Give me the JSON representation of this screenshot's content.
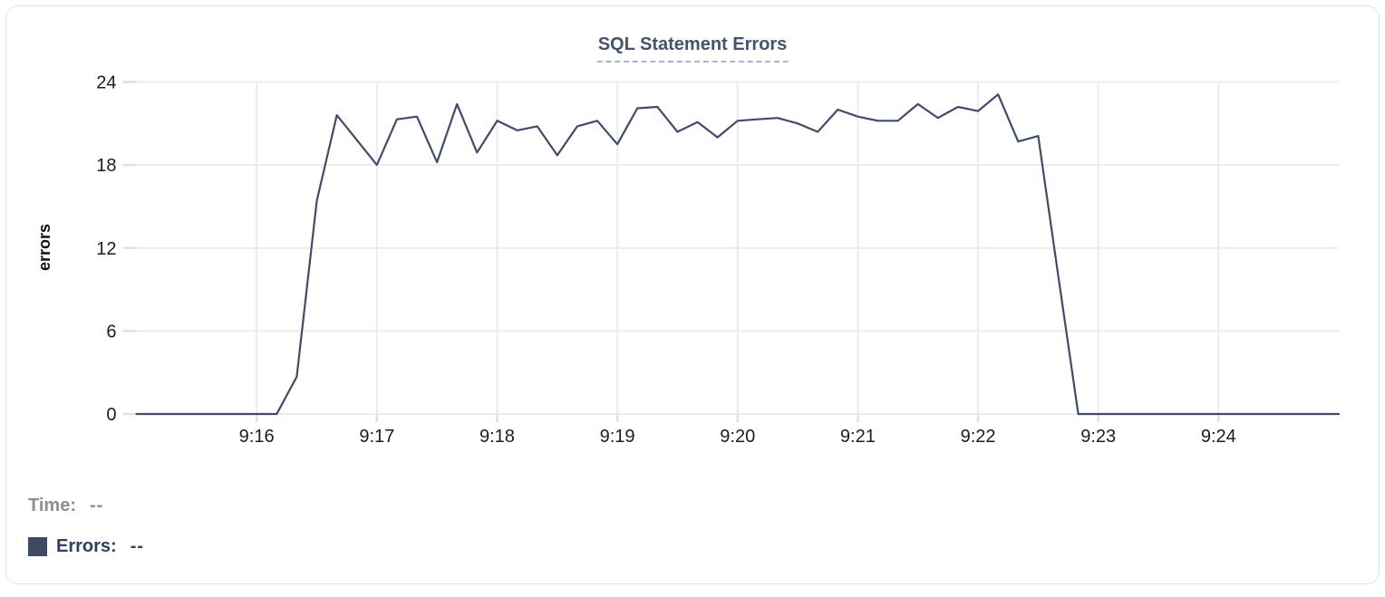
{
  "card": {
    "title": "SQL Statement Errors"
  },
  "tooltip": {
    "time_label": "Time:",
    "time_value": "--",
    "errors_label": "Errors:",
    "errors_value": "--"
  },
  "colors": {
    "line": "#3f4c6a",
    "legend_swatch": "#3e4a63",
    "title_text": "#44536e",
    "muted_text": "#8e8e93",
    "tick_label": "#1c1c1e",
    "gridline": "#ececec",
    "tick_stub": "#e0e0e3",
    "title_underline": "#a9b6c7",
    "card_border": "#e3e3e6"
  },
  "chart_data": {
    "type": "line",
    "title": "SQL Statement Errors",
    "xlabel": "",
    "ylabel": "errors",
    "ylim": [
      0,
      24
    ],
    "y_ticks": [
      24,
      18,
      12,
      6,
      0
    ],
    "x_ticks": [
      "9:16",
      "9:17",
      "9:18",
      "9:19",
      "9:20",
      "9:21",
      "9:22",
      "9:23",
      "9:24"
    ],
    "x_range": [
      "9:15:00",
      "9:25:00"
    ],
    "grid": true,
    "legend_position": "bottom-left",
    "series": [
      {
        "name": "Errors",
        "color": "#3f4c6a",
        "points": [
          [
            "9:15:00",
            0
          ],
          [
            "9:15:10",
            0
          ],
          [
            "9:15:20",
            0
          ],
          [
            "9:15:30",
            0
          ],
          [
            "9:15:40",
            0
          ],
          [
            "9:15:50",
            0
          ],
          [
            "9:16:00",
            0
          ],
          [
            "9:16:10",
            0
          ],
          [
            "9:16:20",
            2.7
          ],
          [
            "9:16:30",
            15.4
          ],
          [
            "9:16:40",
            21.6
          ],
          [
            "9:16:50",
            19.8
          ],
          [
            "9:17:00",
            18.0
          ],
          [
            "9:17:10",
            21.3
          ],
          [
            "9:17:20",
            21.5
          ],
          [
            "9:17:30",
            18.2
          ],
          [
            "9:17:40",
            22.4
          ],
          [
            "9:17:50",
            18.9
          ],
          [
            "9:18:00",
            21.2
          ],
          [
            "9:18:10",
            20.5
          ],
          [
            "9:18:20",
            20.8
          ],
          [
            "9:18:30",
            18.7
          ],
          [
            "9:18:40",
            20.8
          ],
          [
            "9:18:50",
            21.2
          ],
          [
            "9:19:00",
            19.5
          ],
          [
            "9:19:10",
            22.1
          ],
          [
            "9:19:20",
            22.2
          ],
          [
            "9:19:30",
            20.4
          ],
          [
            "9:19:40",
            21.1
          ],
          [
            "9:19:50",
            20.0
          ],
          [
            "9:20:00",
            21.2
          ],
          [
            "9:20:10",
            21.3
          ],
          [
            "9:20:20",
            21.4
          ],
          [
            "9:20:30",
            21.0
          ],
          [
            "9:20:40",
            20.4
          ],
          [
            "9:20:50",
            22.0
          ],
          [
            "9:21:00",
            21.5
          ],
          [
            "9:21:10",
            21.2
          ],
          [
            "9:21:20",
            21.2
          ],
          [
            "9:21:30",
            22.4
          ],
          [
            "9:21:40",
            21.4
          ],
          [
            "9:21:50",
            22.2
          ],
          [
            "9:22:00",
            21.9
          ],
          [
            "9:22:10",
            23.1
          ],
          [
            "9:22:20",
            19.7
          ],
          [
            "9:22:30",
            20.1
          ],
          [
            "9:22:40",
            10.0
          ],
          [
            "9:22:50",
            0
          ],
          [
            "9:23:00",
            0
          ],
          [
            "9:23:10",
            0
          ],
          [
            "9:23:20",
            0
          ],
          [
            "9:23:30",
            0
          ],
          [
            "9:23:40",
            0
          ],
          [
            "9:23:50",
            0
          ],
          [
            "9:24:00",
            0
          ],
          [
            "9:24:10",
            0
          ],
          [
            "9:24:20",
            0
          ],
          [
            "9:24:30",
            0
          ],
          [
            "9:24:40",
            0
          ],
          [
            "9:24:50",
            0
          ],
          [
            "9:25:00",
            0
          ]
        ]
      }
    ]
  }
}
